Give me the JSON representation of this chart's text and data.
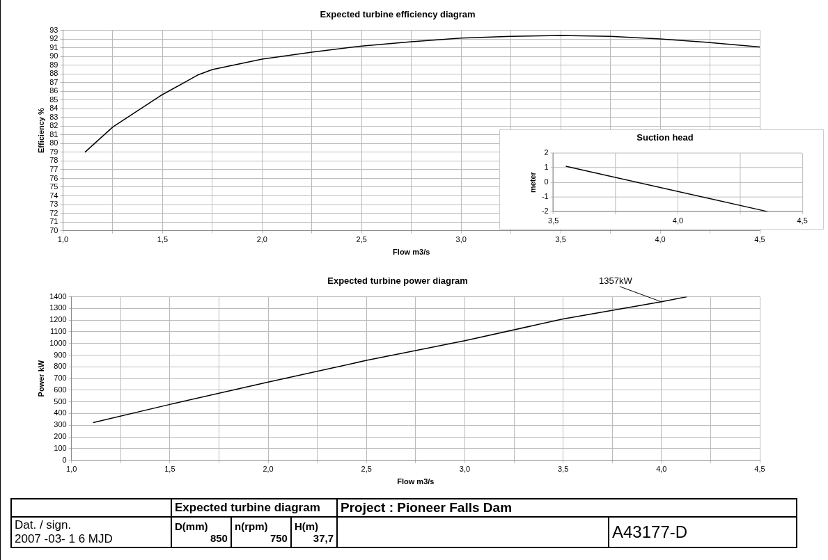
{
  "chart_data": [
    {
      "type": "line",
      "title": "Expected turbine efficiency diagram",
      "xlabel": "Flow m3/s",
      "ylabel": "Efficiency %",
      "x": [
        1.11,
        1.25,
        1.39,
        1.49,
        1.68,
        1.75,
        1.875,
        2.0,
        2.25,
        2.5,
        2.75,
        3.0,
        3.25,
        3.5,
        3.75,
        4.0,
        4.25,
        4.5
      ],
      "series": [
        {
          "color": "#000000",
          "values": [
            79.0,
            81.9,
            84.0,
            85.5,
            87.9,
            88.5,
            89.1,
            89.7,
            90.5,
            91.2,
            91.7,
            92.1,
            92.3,
            92.4,
            92.3,
            92.0,
            91.6,
            91.1
          ]
        }
      ],
      "xlim": [
        1.0,
        4.5
      ],
      "xticks": [
        {
          "value": 1.0,
          "label": "1,0"
        },
        {
          "value": 1.25,
          "label": null
        },
        {
          "value": 1.5,
          "label": "1,5"
        },
        {
          "value": 1.75,
          "label": null
        },
        {
          "value": 2.0,
          "label": "2,0"
        },
        {
          "value": 2.25,
          "label": null
        },
        {
          "value": 2.5,
          "label": "2,5"
        },
        {
          "value": 2.75,
          "label": null
        },
        {
          "value": 3.0,
          "label": "3,0"
        },
        {
          "value": 3.25,
          "label": null
        },
        {
          "value": 3.5,
          "label": "3,5"
        },
        {
          "value": 3.75,
          "label": null
        },
        {
          "value": 4.0,
          "label": "4,0"
        },
        {
          "value": 4.25,
          "label": null
        },
        {
          "value": 4.5,
          "label": "4,5"
        }
      ],
      "ylim": [
        70,
        93
      ],
      "yticks": [
        70,
        71,
        72,
        73,
        74,
        75,
        76,
        77,
        78,
        79,
        80,
        81,
        82,
        83,
        84,
        85,
        86,
        87,
        88,
        89,
        90,
        91,
        92,
        93
      ],
      "grid": true,
      "legend": false,
      "marker": "none",
      "line_style": "solid"
    },
    {
      "type": "line",
      "title": "Suction head",
      "ylabel": "meter",
      "x": [
        3.55,
        4.36
      ],
      "series": [
        {
          "color": "#000000",
          "values": [
            1.1,
            -2.0
          ]
        }
      ],
      "xlim": [
        3.5,
        4.5
      ],
      "xticks": [
        {
          "value": 3.5,
          "label": "3,5"
        },
        {
          "value": 3.75,
          "label": null
        },
        {
          "value": 4.0,
          "label": "4,0"
        },
        {
          "value": 4.25,
          "label": null
        },
        {
          "value": 4.5,
          "label": "4,5"
        }
      ],
      "ylim": [
        -2,
        2
      ],
      "yticks": [
        -2,
        -1,
        0,
        1,
        2
      ],
      "grid": true,
      "legend": false,
      "marker": "none",
      "line_style": "solid"
    },
    {
      "type": "line",
      "title": "Expected turbine power diagram",
      "xlabel": "Flow m3/s",
      "ylabel": "Power kW",
      "x": [
        1.11,
        1.5,
        2.0,
        2.5,
        3.0,
        3.5,
        4.0,
        4.13
      ],
      "series": [
        {
          "color": "#000000",
          "values": [
            322,
            478,
            669,
            855,
            1024,
            1210,
            1357,
            1400
          ]
        }
      ],
      "xlim": [
        1.0,
        4.5
      ],
      "xticks": [
        {
          "value": 1.0,
          "label": "1,0"
        },
        {
          "value": 1.25,
          "label": null
        },
        {
          "value": 1.5,
          "label": "1,5"
        },
        {
          "value": 1.75,
          "label": null
        },
        {
          "value": 2.0,
          "label": "2,0"
        },
        {
          "value": 2.25,
          "label": null
        },
        {
          "value": 2.5,
          "label": "2,5"
        },
        {
          "value": 2.75,
          "label": null
        },
        {
          "value": 3.0,
          "label": "3,0"
        },
        {
          "value": 3.25,
          "label": null
        },
        {
          "value": 3.5,
          "label": "3,5"
        },
        {
          "value": 3.75,
          "label": null
        },
        {
          "value": 4.0,
          "label": "4,0"
        },
        {
          "value": 4.25,
          "label": null
        },
        {
          "value": 4.5,
          "label": "4,5"
        }
      ],
      "ylim": [
        0,
        1400
      ],
      "yticks": [
        0,
        100,
        200,
        300,
        400,
        500,
        600,
        700,
        800,
        900,
        1000,
        1100,
        1200,
        1300,
        1400
      ],
      "annotations": [
        {
          "text": "1357kW",
          "x": 4.0,
          "y": 1357
        }
      ],
      "grid": true,
      "legend": false,
      "marker": "none",
      "line_style": "solid"
    },
    {
      "type": "other",
      "title": "Expected turbine diagram",
      "annotations": [
        "Project : Pioneer Falls Dam",
        "Dat. / sign.",
        "2007 -03- 1 6 MJD",
        "D(mm)",
        "850",
        "n(rpm)",
        "750",
        "H(m)",
        "37,7",
        "A43177-D"
      ]
    }
  ]
}
